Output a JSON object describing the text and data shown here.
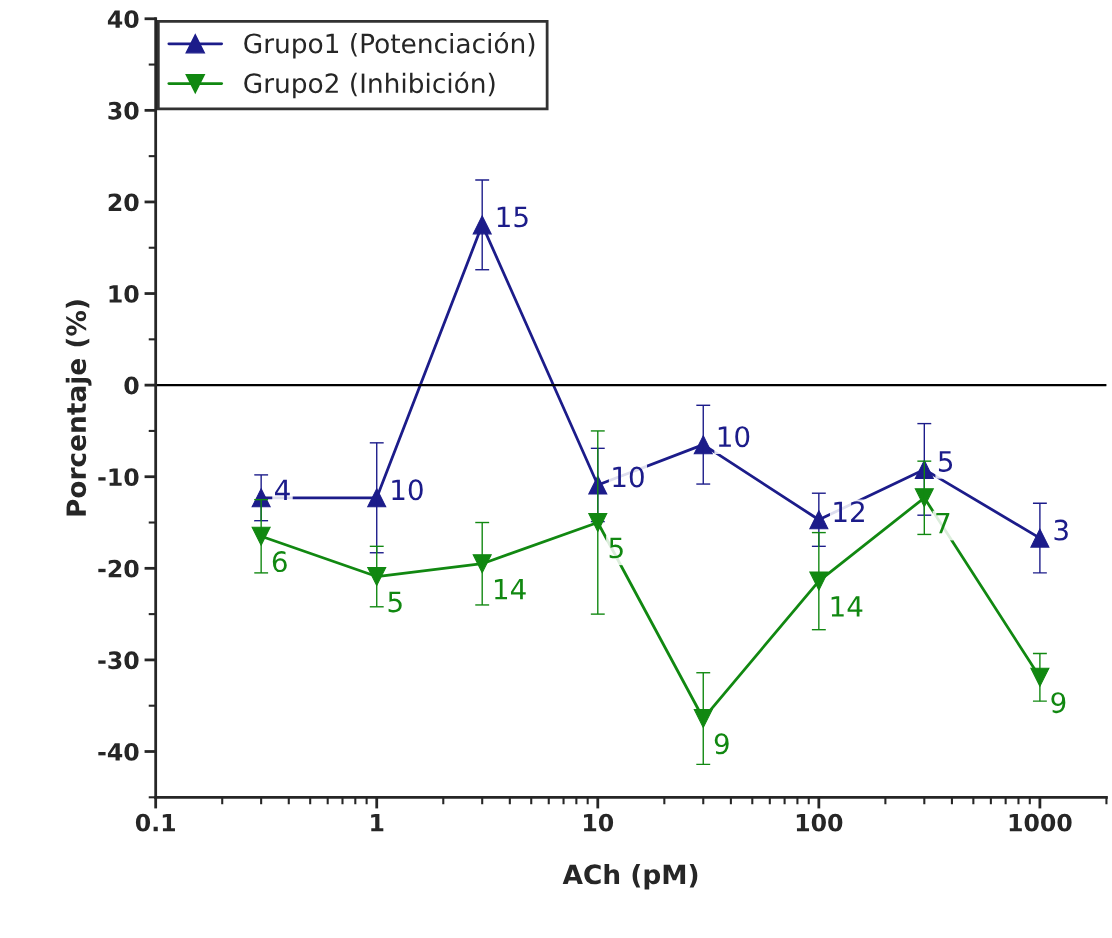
{
  "chart_data": {
    "type": "line",
    "xlabel": "ACh (pM)",
    "ylabel": "Porcentaje (%)",
    "log": "x",
    "x": [
      0.3,
      1,
      3,
      10,
      30,
      100,
      300,
      1000
    ],
    "series": [
      {
        "name": "Grupo1 (Potenciación)",
        "color": "#1c1c8a",
        "marker": "triangle",
        "values": [
          -12.3,
          -12.3,
          17.5,
          -10.9,
          -6.5,
          -14.7,
          -9.2,
          -16.7
        ],
        "errors": [
          2.5,
          6,
          4.9,
          4,
          4.3,
          2.9,
          5,
          3.8
        ]
      },
      {
        "name": "Grupo2 (Inhibición)",
        "color": "#118811",
        "marker": "triangle_down",
        "values": [
          -16.5,
          -20.9,
          -19.5,
          -15,
          -36.4,
          -21.4,
          -12.3,
          -31.9
        ],
        "errors": [
          4,
          3.3,
          4.5,
          10,
          5,
          5.3,
          4,
          2.6
        ]
      }
    ],
    "annotations": [
      {
        "text": "4",
        "x": 0.3,
        "y": -12.3
      },
      {
        "text": "10",
        "x": 1,
        "y": -12.3
      },
      {
        "text": "15",
        "x": 3,
        "y": 17.5
      },
      {
        "text": "10",
        "x": 10,
        "y": -10.9
      },
      {
        "text": "10",
        "x": 30,
        "y": -6.5
      },
      {
        "text": "12",
        "x": 100,
        "y": -14.7
      },
      {
        "text": "5",
        "x": 300,
        "y": -9.2
      },
      {
        "text": "3",
        "x": 1000,
        "y": -16.7
      },
      {
        "text": "6",
        "x": 0.3,
        "y": -16.5
      },
      {
        "text": "5",
        "x": 1,
        "y": -20.9
      },
      {
        "text": "14",
        "x": 3,
        "y": -19.5
      },
      {
        "text": "5",
        "x": 10,
        "y": -15
      },
      {
        "text": "9",
        "x": 30,
        "y": -36.4
      },
      {
        "text": "14",
        "x": 100,
        "y": -21.4
      },
      {
        "text": "7",
        "x": 300,
        "y": -12.3
      },
      {
        "text": "9",
        "x": 1000,
        "y": -31.9
      }
    ],
    "xlim": [
      0.1,
      2000
    ],
    "xticks": [
      {
        "value": 0.1,
        "label": "0.1"
      },
      1,
      10,
      100,
      1000
    ],
    "ylim": [
      -45,
      40
    ],
    "yticks": [
      -40,
      -30,
      -20,
      -10,
      0,
      10,
      20,
      30,
      40
    ],
    "ref_lines": [
      {
        "axis": "y",
        "value": 0,
        "color": "#000000"
      }
    ],
    "grid": false,
    "legend": "top left",
    "line_style": "solid"
  }
}
